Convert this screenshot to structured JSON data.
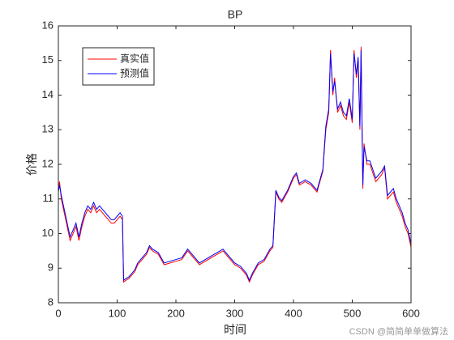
{
  "chart_data": {
    "type": "line",
    "title": "BP",
    "x_label": "时间",
    "y_label": "价格",
    "watermark": "CSDN @简简单单做算法",
    "x": [
      0,
      2,
      5,
      10,
      15,
      20,
      25,
      30,
      35,
      40,
      45,
      50,
      55,
      60,
      65,
      70,
      75,
      80,
      85,
      90,
      95,
      100,
      105,
      109,
      111,
      115,
      120,
      125,
      130,
      135,
      140,
      145,
      150,
      155,
      160,
      170,
      180,
      190,
      200,
      210,
      220,
      230,
      240,
      250,
      260,
      270,
      280,
      290,
      300,
      310,
      320,
      325,
      330,
      340,
      350,
      360,
      365,
      370,
      375,
      380,
      390,
      400,
      405,
      410,
      420,
      430,
      440,
      450,
      455,
      460,
      463,
      467,
      470,
      475,
      480,
      485,
      490,
      495,
      500,
      503,
      507,
      510,
      513,
      515,
      518,
      520,
      525,
      530,
      540,
      550,
      555,
      560,
      570,
      575,
      580,
      585,
      590,
      595,
      600
    ],
    "series": [
      {
        "name": "真实值",
        "color": "#ff0000",
        "values": [
          11.3,
          11.5,
          11.0,
          10.6,
          10.2,
          9.8,
          10.0,
          10.2,
          9.8,
          10.2,
          10.5,
          10.7,
          10.6,
          10.8,
          10.6,
          10.7,
          10.6,
          10.5,
          10.4,
          10.3,
          10.3,
          10.4,
          10.5,
          10.4,
          8.6,
          8.65,
          8.7,
          8.8,
          8.9,
          9.1,
          9.2,
          9.3,
          9.4,
          9.6,
          9.5,
          9.4,
          9.1,
          9.15,
          9.2,
          9.25,
          9.5,
          9.3,
          9.1,
          9.2,
          9.3,
          9.4,
          9.5,
          9.3,
          9.1,
          9.0,
          8.8,
          8.6,
          8.8,
          9.1,
          9.2,
          9.5,
          9.6,
          11.2,
          11.0,
          10.9,
          11.2,
          11.6,
          11.7,
          11.4,
          11.5,
          11.4,
          11.2,
          11.8,
          13.0,
          13.5,
          15.3,
          14.0,
          14.5,
          13.5,
          13.7,
          13.4,
          13.3,
          13.8,
          13.2,
          15.3,
          14.5,
          15.0,
          13.0,
          15.4,
          11.3,
          12.6,
          12.0,
          12.0,
          11.5,
          11.7,
          11.9,
          11.0,
          11.2,
          10.9,
          10.7,
          10.5,
          10.2,
          10.0,
          9.6
        ]
      },
      {
        "name": "预测值",
        "color": "#0000ff",
        "values": [
          11.2,
          11.4,
          11.1,
          10.7,
          10.3,
          9.9,
          10.1,
          10.3,
          9.9,
          10.3,
          10.6,
          10.8,
          10.7,
          10.9,
          10.7,
          10.8,
          10.7,
          10.6,
          10.5,
          10.4,
          10.4,
          10.5,
          10.6,
          10.5,
          8.65,
          8.7,
          8.75,
          8.85,
          8.95,
          9.15,
          9.25,
          9.35,
          9.45,
          9.65,
          9.55,
          9.45,
          9.15,
          9.2,
          9.25,
          9.3,
          9.55,
          9.35,
          9.15,
          9.25,
          9.35,
          9.45,
          9.55,
          9.35,
          9.15,
          9.05,
          8.85,
          8.65,
          8.85,
          9.15,
          9.25,
          9.55,
          9.65,
          11.25,
          11.05,
          10.95,
          11.25,
          11.65,
          11.75,
          11.45,
          11.55,
          11.45,
          11.25,
          11.85,
          13.1,
          13.6,
          15.2,
          14.1,
          14.4,
          13.6,
          13.8,
          13.5,
          13.4,
          13.9,
          13.3,
          15.2,
          14.6,
          15.1,
          13.1,
          15.3,
          11.4,
          12.5,
          12.1,
          12.1,
          11.6,
          11.8,
          11.95,
          11.1,
          11.3,
          11.0,
          10.8,
          10.6,
          10.3,
          10.1,
          9.7
        ]
      }
    ],
    "xlim": [
      0,
      600
    ],
    "xticks": [
      0,
      100,
      200,
      300,
      400,
      500,
      600
    ],
    "ylim": [
      8,
      16
    ],
    "yticks": [
      8,
      9,
      10,
      11,
      12,
      13,
      14,
      15,
      16
    ],
    "grid": false,
    "legend": "upper left"
  }
}
